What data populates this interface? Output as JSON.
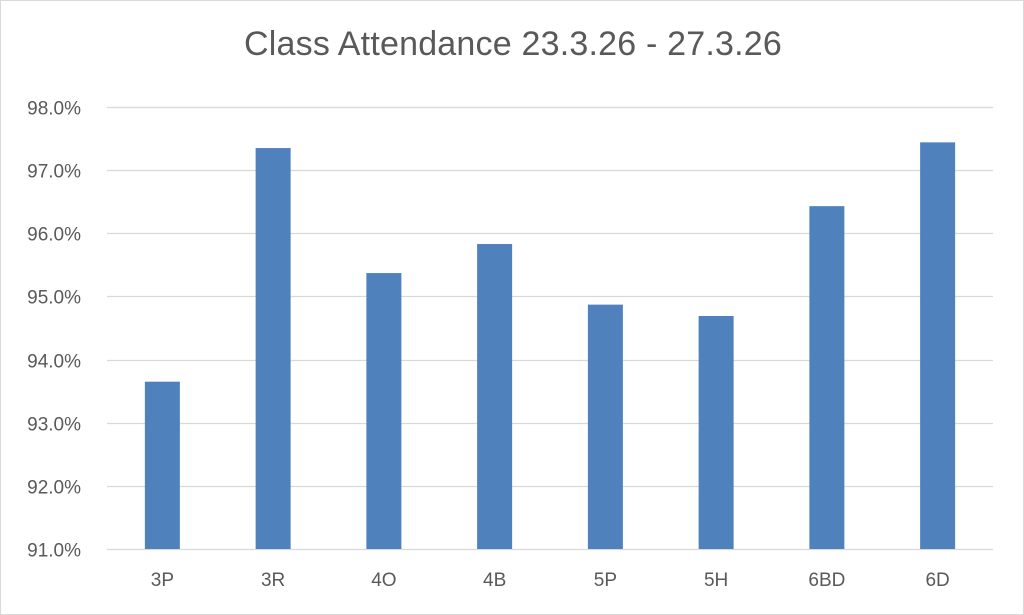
{
  "chart_data": {
    "type": "bar",
    "title": "Class Attendance 23.3.26 - 27.3.26",
    "xlabel": "",
    "ylabel": "",
    "categories": [
      "3P",
      "3R",
      "4O",
      "4B",
      "5P",
      "5H",
      "6BD",
      "6D"
    ],
    "values": [
      93.65,
      97.35,
      95.37,
      95.83,
      94.87,
      94.69,
      96.43,
      97.44
    ],
    "ylim": [
      91.0,
      98.0
    ],
    "yticks": [
      91.0,
      92.0,
      93.0,
      94.0,
      95.0,
      96.0,
      97.0,
      98.0
    ],
    "ytick_labels": [
      "91.0%",
      "92.0%",
      "93.0%",
      "94.0%",
      "95.0%",
      "96.0%",
      "97.0%",
      "98.0%"
    ],
    "grid": true,
    "legend": "none",
    "bar_color": "#4f81bd",
    "grid_color": "#d9d9d9"
  }
}
